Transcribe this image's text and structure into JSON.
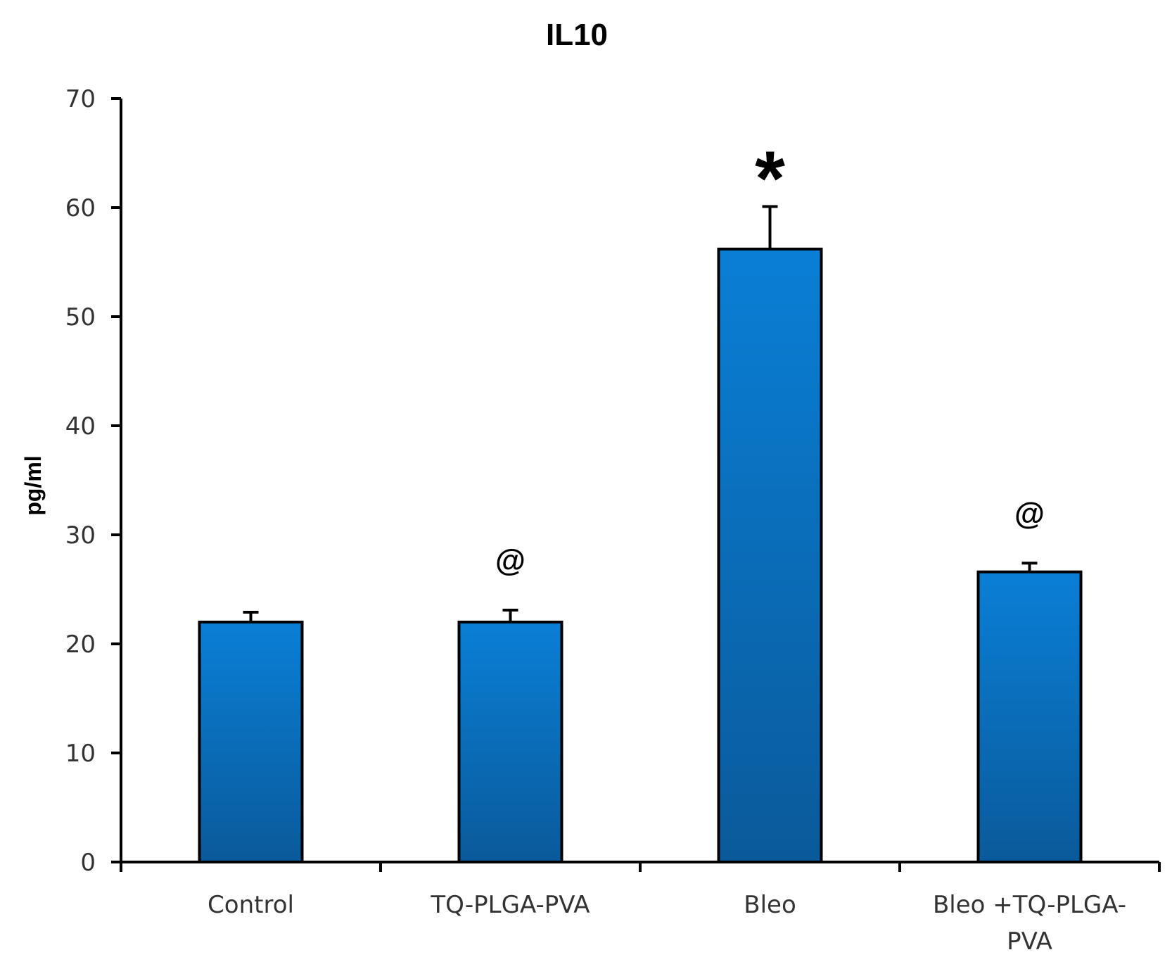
{
  "chart_data": {
    "type": "bar",
    "title": "IL10",
    "xlabel": "",
    "ylabel": "pg/ml",
    "ylim": [
      0,
      70
    ],
    "yticks": [
      0,
      10,
      20,
      30,
      40,
      50,
      60,
      70
    ],
    "categories": [
      [
        "Control"
      ],
      [
        "TQ-PLGA-PVA"
      ],
      [
        "Bleo"
      ],
      [
        "Bleo +TQ-PLGA-",
        "PVA"
      ]
    ],
    "values": [
      22,
      22,
      56.2,
      26.6
    ],
    "errors": [
      0.9,
      1.1,
      3.9,
      0.8
    ],
    "annotations": [
      "",
      "@",
      "*",
      "@"
    ],
    "bar_color_top": "#0a7fd6",
    "bar_color_bottom": "#0a5a9a",
    "bar_stroke": "#000000"
  }
}
